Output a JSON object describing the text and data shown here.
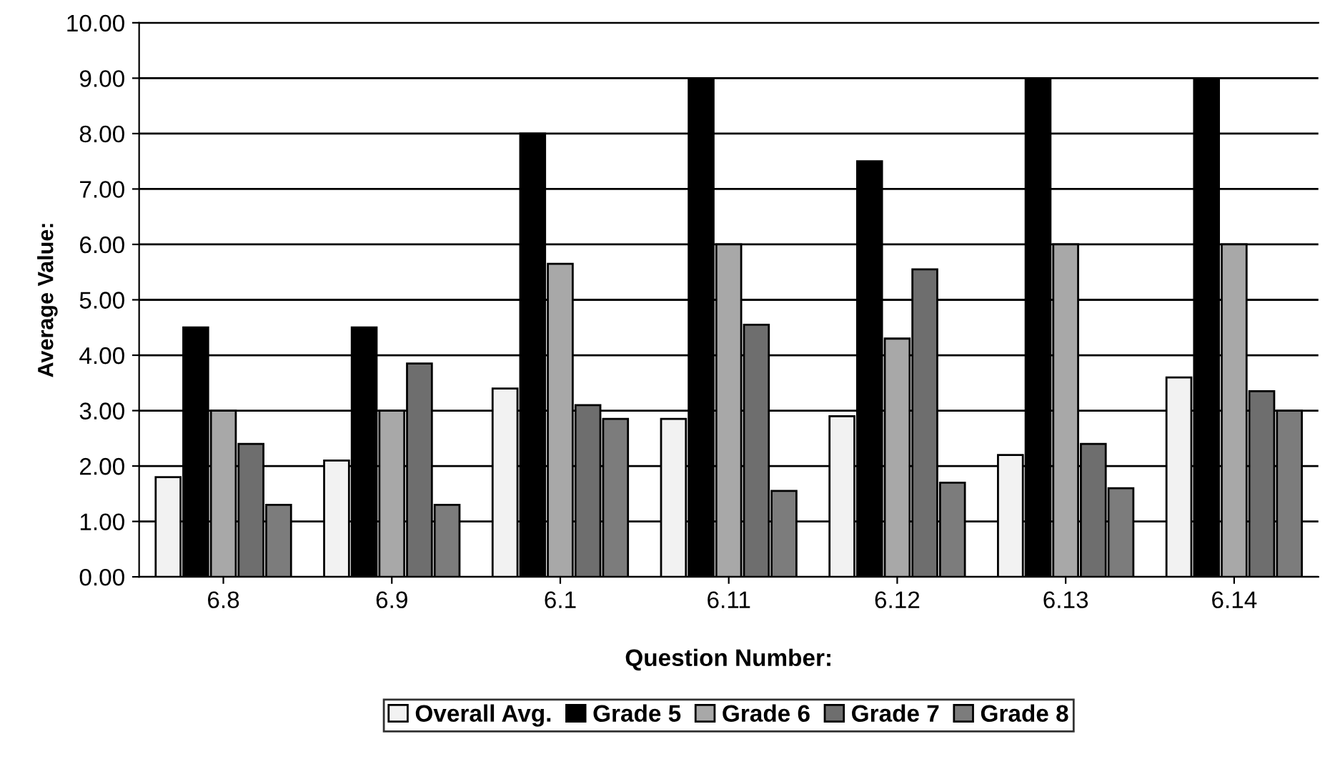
{
  "chart_data": {
    "type": "bar",
    "xlabel": "Question Number:",
    "ylabel": "Average Value:",
    "categories": [
      "6.8",
      "6.9",
      "6.1",
      "6.11",
      "6.12",
      "6.13",
      "6.14"
    ],
    "series": [
      {
        "name": "Overall Avg.",
        "color": "#f2f2f2",
        "values": [
          1.8,
          2.1,
          3.4,
          2.85,
          2.9,
          2.2,
          3.6
        ]
      },
      {
        "name": "Grade 5",
        "color": "#000000",
        "values": [
          4.5,
          4.5,
          8.0,
          9.0,
          7.5,
          9.0,
          9.0
        ]
      },
      {
        "name": "Grade 6",
        "color": "#a8a8a8",
        "values": [
          3.0,
          3.0,
          5.65,
          6.0,
          4.3,
          6.0,
          6.0
        ]
      },
      {
        "name": "Grade 7",
        "color": "#6e6e6e",
        "values": [
          2.4,
          3.85,
          3.1,
          4.55,
          5.55,
          2.4,
          3.35
        ]
      },
      {
        "name": "Grade 8",
        "color": "#7c7c7c",
        "values": [
          1.3,
          1.3,
          2.85,
          1.55,
          1.7,
          1.6,
          3.0
        ]
      }
    ],
    "ylim": [
      0,
      10
    ],
    "yticks": [
      {
        "value": 0,
        "label": "0.00"
      },
      {
        "value": 1,
        "label": "1.00"
      },
      {
        "value": 2,
        "label": "2.00"
      },
      {
        "value": 3,
        "label": "3.00"
      },
      {
        "value": 4,
        "label": "4.00"
      },
      {
        "value": 5,
        "label": "5.00"
      },
      {
        "value": 6,
        "label": "6.00"
      },
      {
        "value": 7,
        "label": "7.00"
      },
      {
        "value": 8,
        "label": "8.00"
      },
      {
        "value": 9,
        "label": "9.00"
      },
      {
        "value": 10,
        "label": "10.00"
      }
    ],
    "grid": "y",
    "legend": "bottom"
  }
}
